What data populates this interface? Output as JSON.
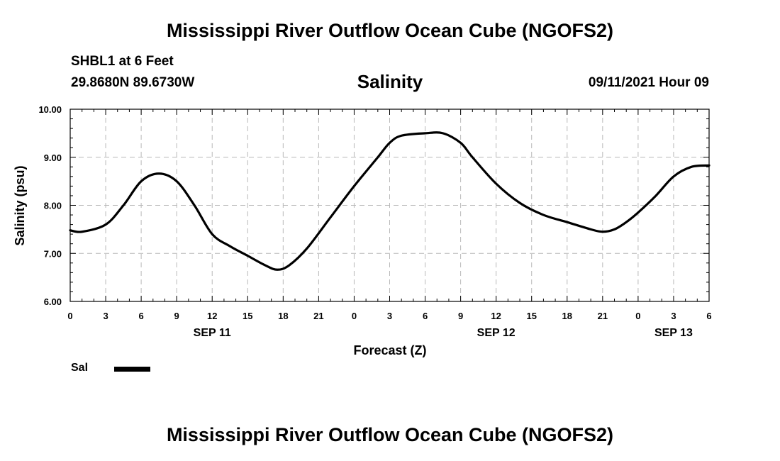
{
  "header": {
    "title": "Mississippi River Outflow Ocean Cube (NGOFS2)",
    "station": "SHBL1 at 6 Feet",
    "coords": "29.8680N  89.6730W",
    "subtitle": "Salinity",
    "datetime": "09/11/2021 Hour 09"
  },
  "footer": {
    "title": "Mississippi River Outflow Ocean Cube (NGOFS2)"
  },
  "legend": {
    "label": "Sal",
    "color": "#000000"
  },
  "chart_data": {
    "type": "line",
    "title": "Salinity",
    "xlabel": "Forecast (Z)",
    "ylabel": "Salinity (psu)",
    "xlim": [
      0,
      54
    ],
    "ylim": [
      6.0,
      10.0
    ],
    "grid": true,
    "legend_position": "bottom-left",
    "x_ticks": [
      0,
      3,
      6,
      9,
      12,
      15,
      18,
      21,
      24,
      27,
      30,
      33,
      36,
      39,
      42,
      45,
      48,
      51,
      54
    ],
    "x_tick_labels": [
      "0",
      "3",
      "6",
      "9",
      "12",
      "15",
      "18",
      "21",
      "0",
      "3",
      "6",
      "9",
      "12",
      "15",
      "18",
      "21",
      "0",
      "3",
      "6"
    ],
    "y_ticks": [
      6.0,
      7.0,
      8.0,
      9.0,
      10.0
    ],
    "y_tick_labels": [
      "6.00",
      "7.00",
      "8.00",
      "9.00",
      "10.00"
    ],
    "date_labels": [
      {
        "text": "SEP 11",
        "x": 12
      },
      {
        "text": "SEP 12",
        "x": 36
      },
      {
        "text": "SEP 13",
        "x": 51
      }
    ],
    "series": [
      {
        "name": "Sal",
        "color": "#000000",
        "x": [
          0,
          1,
          3,
          4.5,
          6,
          7.5,
          9,
          10.5,
          12,
          13.5,
          15,
          16.5,
          17.5,
          18.5,
          20,
          22,
          24,
          26,
          27,
          28,
          30,
          31.5,
          33,
          34,
          36,
          38,
          40,
          42,
          44,
          45,
          46,
          47,
          48,
          49.5,
          51,
          52.5,
          54
        ],
        "values": [
          7.48,
          7.45,
          7.6,
          8.0,
          8.5,
          8.66,
          8.5,
          8.0,
          7.4,
          7.15,
          6.95,
          6.75,
          6.66,
          6.75,
          7.1,
          7.75,
          8.4,
          9.0,
          9.3,
          9.45,
          9.5,
          9.5,
          9.3,
          9.0,
          8.45,
          8.05,
          7.8,
          7.65,
          7.5,
          7.45,
          7.5,
          7.65,
          7.85,
          8.2,
          8.6,
          8.8,
          8.83
        ]
      }
    ]
  }
}
